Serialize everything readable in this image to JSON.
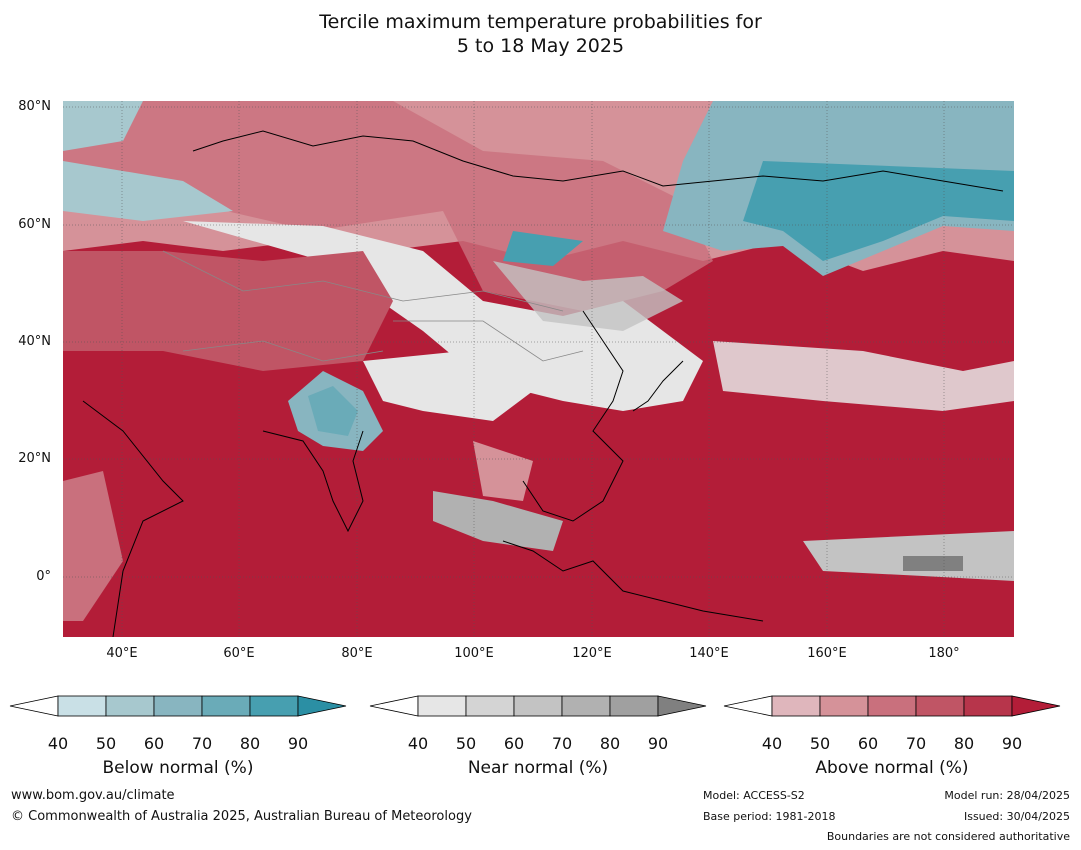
{
  "title_line1": "Tercile maximum temperature probabilities for",
  "title_line2": "5 to 18 May 2025",
  "lat_labels": [
    "80°N",
    "60°N",
    "40°N",
    "20°N",
    "0°"
  ],
  "lon_labels": [
    "40°E",
    "60°E",
    "80°E",
    "100°E",
    "120°E",
    "140°E",
    "160°E",
    "180°"
  ],
  "legends": [
    {
      "title": "Below normal (%)",
      "ticks": [
        "40",
        "50",
        "60",
        "70",
        "80",
        "90"
      ],
      "colors": [
        "#c9e0e6",
        "#a7c8ce",
        "#88b5c0",
        "#6aabb8",
        "#479fb0",
        "#2b8fa4"
      ]
    },
    {
      "title": "Near normal (%)",
      "ticks": [
        "40",
        "50",
        "60",
        "70",
        "80",
        "90"
      ],
      "colors": [
        "#e6e6e6",
        "#d4d4d4",
        "#c3c3c3",
        "#b1b1b1",
        "#a0a0a0",
        "#808080"
      ]
    },
    {
      "title": "Above normal (%)",
      "ticks": [
        "40",
        "50",
        "60",
        "70",
        "80",
        "90"
      ],
      "colors": [
        "#dfb6bc",
        "#d59299",
        "#c9707d",
        "#c05565",
        "#b7354b",
        "#b31d38"
      ]
    }
  ],
  "footer": {
    "website": "www.bom.gov.au/climate",
    "copyright": "© Commonwealth of Australia 2025, Australian Bureau of Meteorology",
    "model": "Model: ACCESS-S2",
    "base_period": "Base period: 1981-2018",
    "model_run": "Model run: 28/04/2025",
    "issued": "Issued: 30/04/2025",
    "disclaimer": "Boundaries are not considered authoritative"
  }
}
